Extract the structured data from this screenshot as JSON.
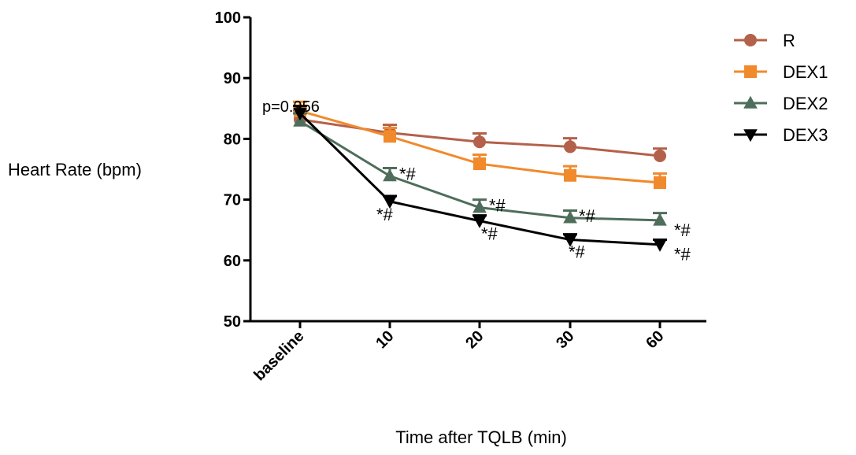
{
  "chart_data": {
    "type": "line",
    "xlabel": "Time after TQLB (min)",
    "ylabel": "Heart Rate (bpm)",
    "ylim": [
      50,
      100
    ],
    "yticks": [
      "50",
      "60",
      "70",
      "80",
      "90",
      "100"
    ],
    "categories": [
      "baseline",
      "10",
      "20",
      "30",
      "60"
    ],
    "legend_position": "top-right",
    "series": [
      {
        "name": "R",
        "color": "#b3614a",
        "marker": "circle",
        "values": [
          83.2,
          81.0,
          79.5,
          78.7,
          77.2
        ],
        "errors": [
          1.5,
          1.3,
          1.4,
          1.4,
          1.2
        ]
      },
      {
        "name": "DEX1",
        "color": "#f08a2c",
        "marker": "square",
        "values": [
          84.6,
          80.4,
          75.9,
          74.0,
          72.8
        ],
        "errors": [
          1.5,
          1.4,
          1.5,
          1.5,
          1.5
        ]
      },
      {
        "name": "DEX2",
        "color": "#4e6e5b",
        "marker": "triangle-up",
        "values": [
          82.9,
          73.9,
          68.7,
          67.0,
          66.6
        ],
        "errors": [
          1.3,
          1.3,
          1.3,
          1.2,
          1.2
        ]
      },
      {
        "name": "DEX3",
        "color": "#000000",
        "marker": "triangle-down",
        "values": [
          84.2,
          69.7,
          66.5,
          63.4,
          62.6
        ],
        "errors": [
          1.2,
          0.9,
          0.9,
          0.9,
          0.8
        ]
      }
    ],
    "annotations": [
      {
        "text": "p=0.956",
        "category": "baseline"
      },
      {
        "text": "*#",
        "series": "DEX2",
        "category": "10"
      },
      {
        "text": "*#",
        "series": "DEX3",
        "category": "10"
      },
      {
        "text": "*#",
        "series": "DEX2",
        "category": "20"
      },
      {
        "text": "*#",
        "series": "DEX3",
        "category": "20"
      },
      {
        "text": "*#",
        "series": "DEX2",
        "category": "30"
      },
      {
        "text": "*#",
        "series": "DEX3",
        "category": "30"
      },
      {
        "text": "*#",
        "series": "DEX2",
        "category": "60"
      },
      {
        "text": "*#",
        "series": "DEX3",
        "category": "60"
      }
    ]
  }
}
